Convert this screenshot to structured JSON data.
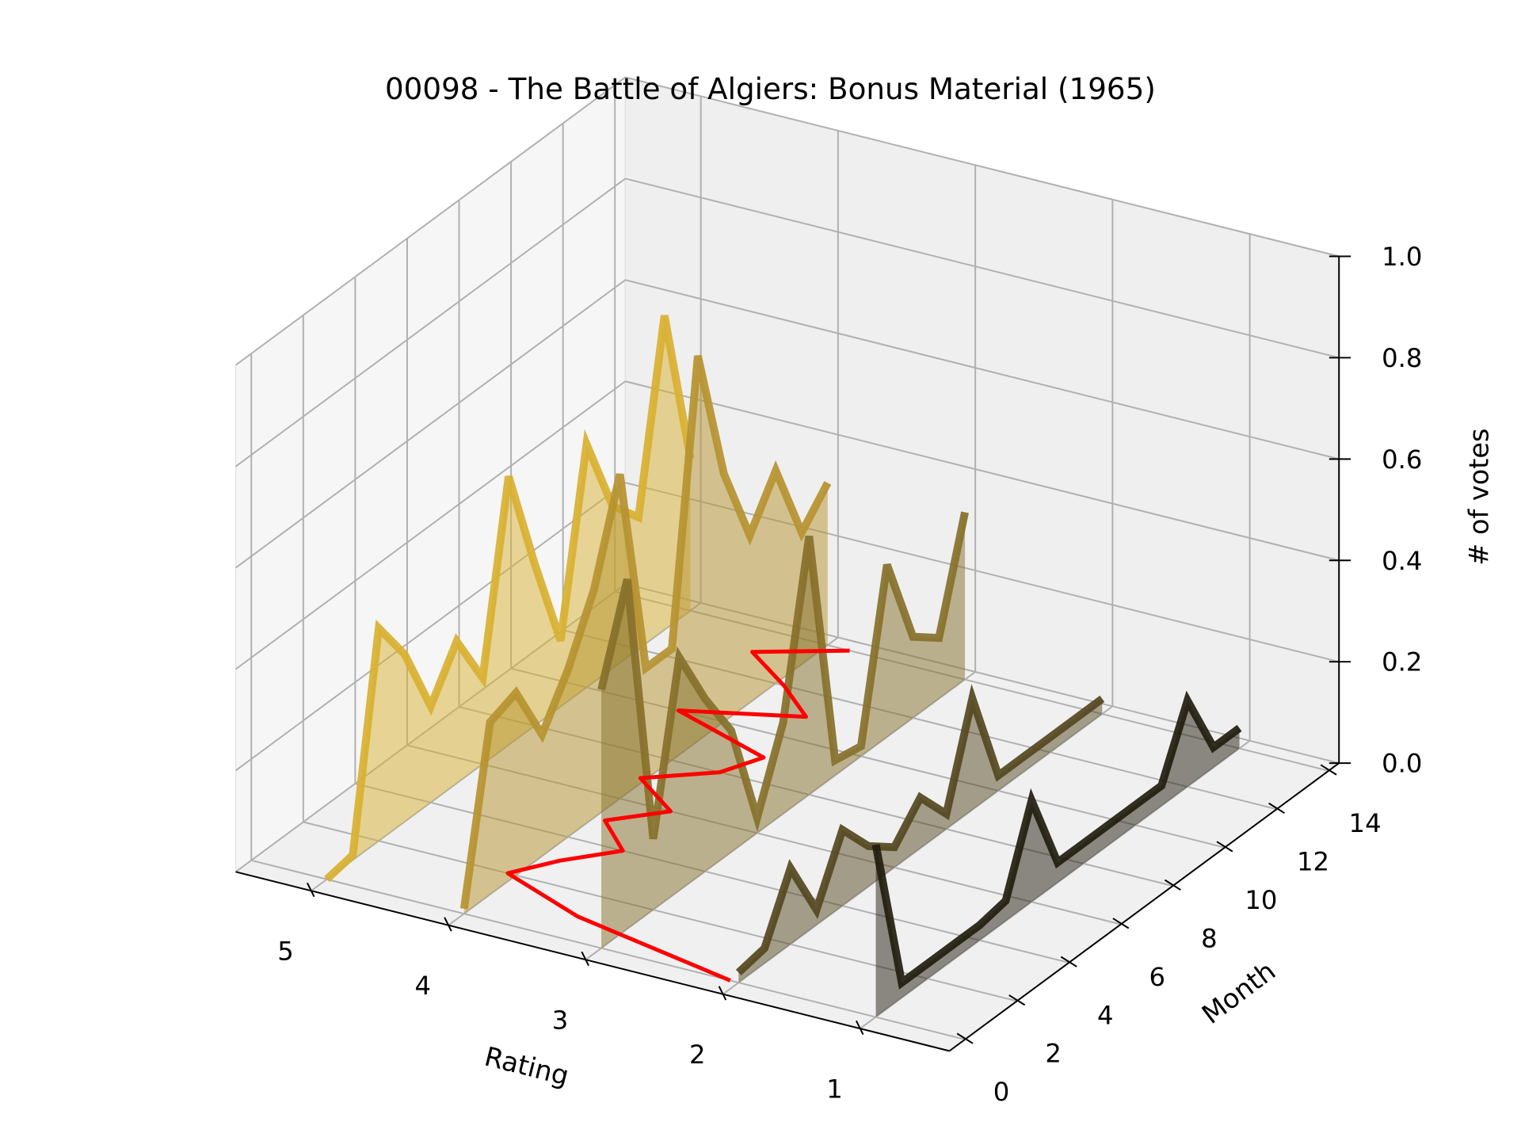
{
  "chart_data": {
    "type": "line3d",
    "title": "00098 - The Battle of Algiers: Bonus Material (1965)",
    "xlabel": "Rating",
    "ylabel": "Month",
    "zlabel": "# of votes",
    "xlim": [
      0.35,
      5.55
    ],
    "ylim": [
      -0.6,
      14.4
    ],
    "zlim": [
      0,
      1
    ],
    "xticks": [
      1,
      2,
      3,
      4,
      5
    ],
    "yticks": [
      0,
      2,
      4,
      6,
      8,
      10,
      12,
      14
    ],
    "zticks": [
      {
        "value": 0,
        "label": "0.0"
      },
      0.2,
      0.4,
      0.6,
      0.8,
      {
        "value": 1,
        "label": "1.0"
      }
    ],
    "grid": true,
    "months": [
      0,
      1,
      2,
      3,
      4,
      5,
      6,
      7,
      8,
      9,
      10,
      11,
      12,
      13,
      14
    ],
    "series": [
      {
        "rating": 5,
        "color": "#d8b030",
        "values": [
          0.0,
          0.01,
          0.42,
          0.33,
          0.19,
          0.28,
          0.17,
          0.53,
          0.32,
          0.13,
          0.48,
          0.32,
          0.26,
          0.62,
          0.3
        ]
      },
      {
        "rating": 4,
        "color": "#b69330",
        "values": [
          0.01,
          0.34,
          0.36,
          0.24,
          0.33,
          0.45,
          0.64,
          0.22,
          0.22,
          0.76,
          0.49,
          0.33,
          0.42,
          0.26,
          0.32
        ]
      },
      {
        "rating": 3,
        "color": "#85702a",
        "values": [
          0.51,
          0.69,
          0.14,
          0.46,
          0.34,
          0.24,
          0.03,
          0.18,
          0.51,
          0.03,
          0.02,
          0.34,
          0.16,
          0.12,
          0.33
        ]
      },
      {
        "rating": 2,
        "color": "#544820",
        "values": [
          0.02,
          0.03,
          0.15,
          0.03,
          0.15,
          0.08,
          0.04,
          0.1,
          0.03,
          0.22,
          0.03,
          0.03,
          0.03,
          0.03,
          0.03
        ]
      },
      {
        "rating": 1,
        "color": "#221d0e",
        "values": [
          0.34,
          0.03,
          0.03,
          0.03,
          0.03,
          0.04,
          0.2,
          0.04,
          0.04,
          0.04,
          0.04,
          0.04,
          0.17,
          0.04,
          0.04
        ]
      }
    ],
    "mean_line": {
      "color": "#ff0000",
      "values": [
        2.06,
        3.36,
        4.06,
        3.87,
        3.6,
        3.92,
        3.63,
        4.04,
        3.65,
        3.52,
        4.33,
        3.59,
        3.94,
        4.36,
        3.84
      ]
    }
  }
}
